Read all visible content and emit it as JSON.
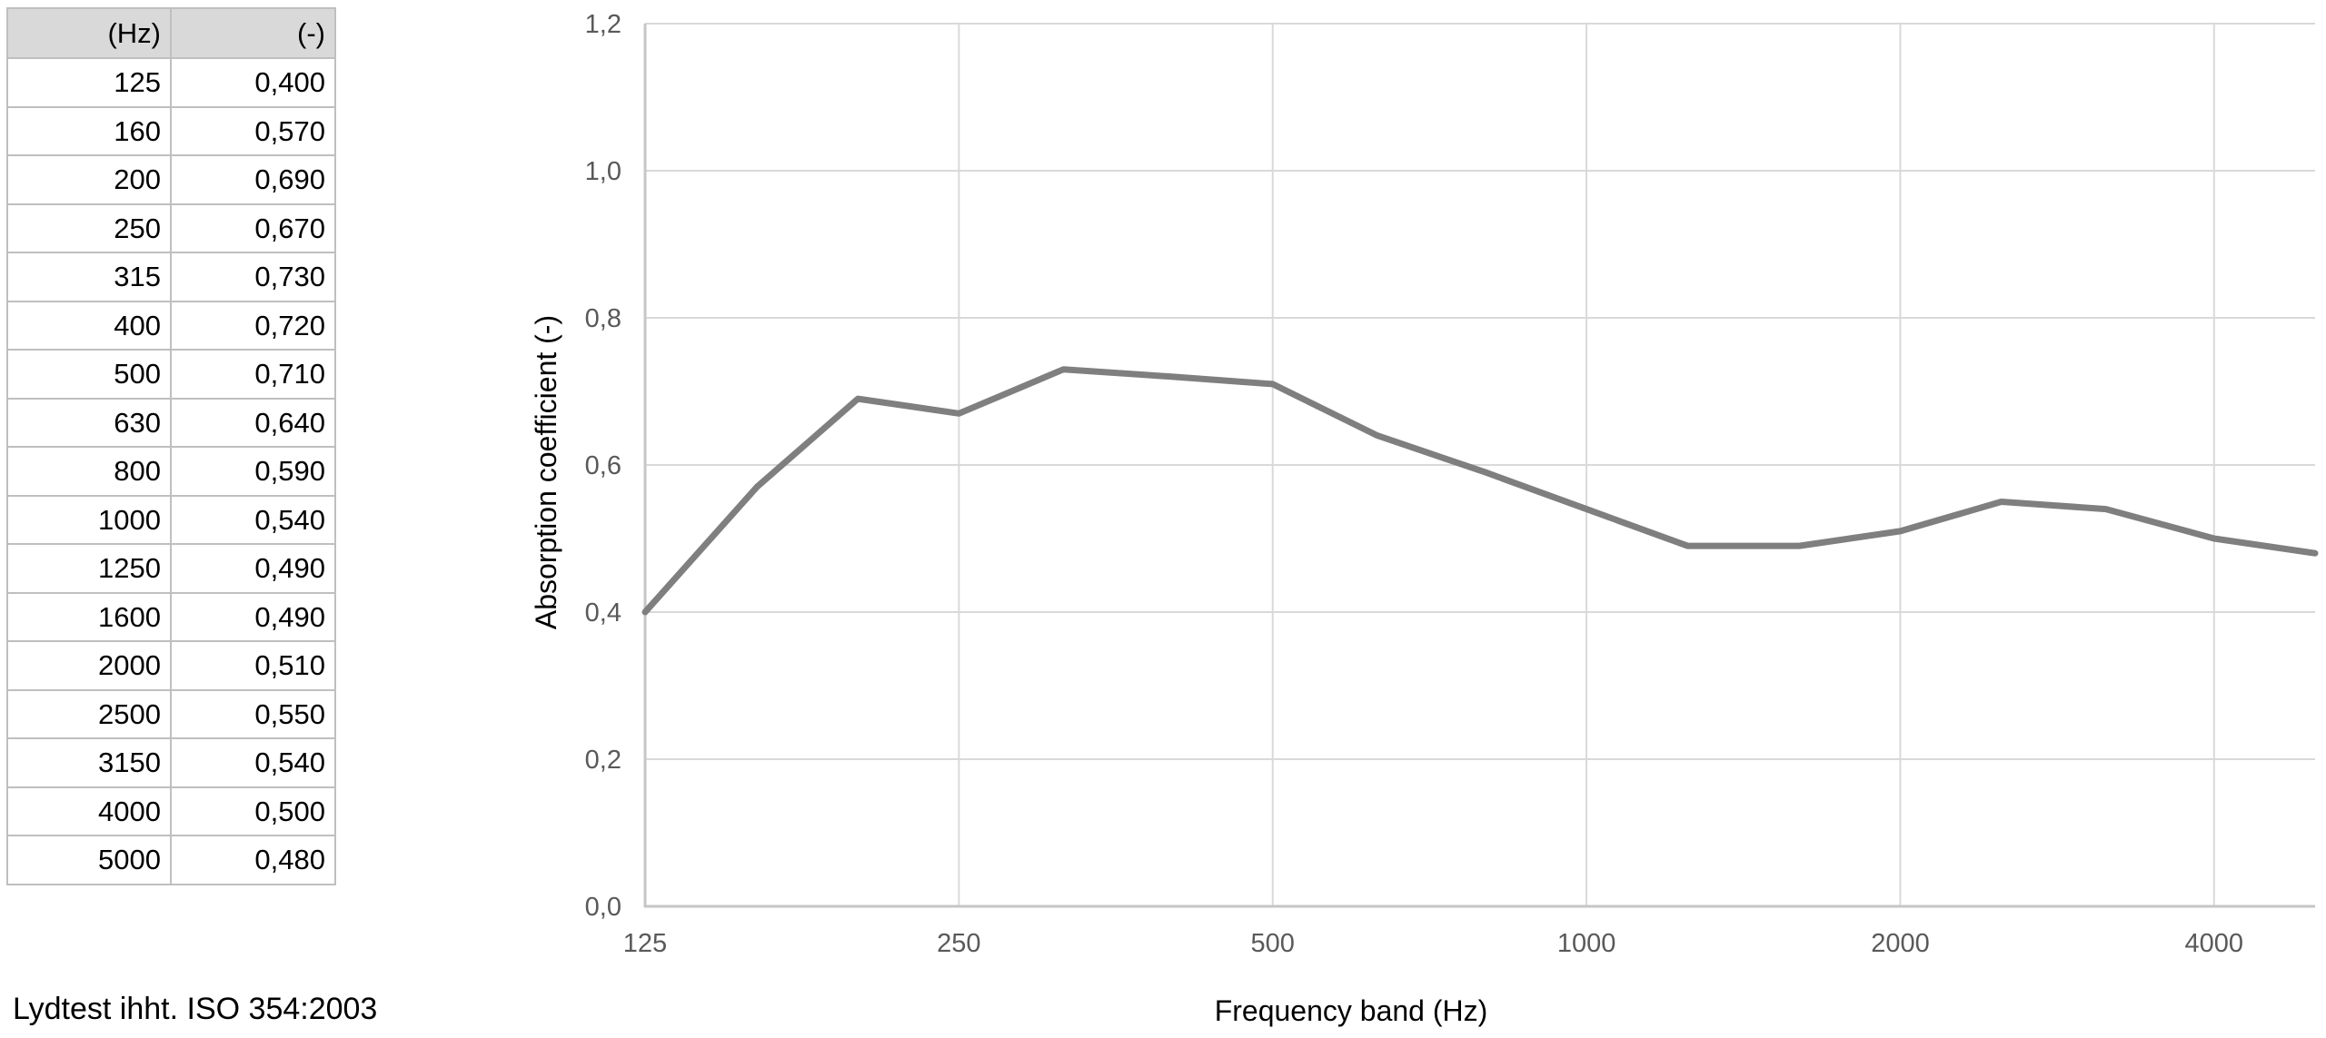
{
  "page": {
    "background": "#ffffff"
  },
  "table": {
    "headers": [
      "(Hz)",
      "(-)"
    ],
    "rows": [
      [
        "125",
        "0,400"
      ],
      [
        "160",
        "0,570"
      ],
      [
        "200",
        "0,690"
      ],
      [
        "250",
        "0,670"
      ],
      [
        "315",
        "0,730"
      ],
      [
        "400",
        "0,720"
      ],
      [
        "500",
        "0,710"
      ],
      [
        "630",
        "0,640"
      ],
      [
        "800",
        "0,590"
      ],
      [
        "1000",
        "0,540"
      ],
      [
        "1250",
        "0,490"
      ],
      [
        "1600",
        "0,490"
      ],
      [
        "2000",
        "0,510"
      ],
      [
        "2500",
        "0,550"
      ],
      [
        "3150",
        "0,540"
      ],
      [
        "4000",
        "0,500"
      ],
      [
        "5000",
        "0,480"
      ]
    ],
    "header_bg": "#d9d9d9",
    "border_color": "#bfbfbf"
  },
  "footnote": "Lydtest ihht. ISO 354:2003",
  "chart_data": {
    "type": "line",
    "title": "",
    "xlabel": "Frequency band (Hz)",
    "ylabel": "Absorption coefficient (-)",
    "x_scale": "log",
    "xlim": [
      125,
      5000
    ],
    "ylim": [
      0,
      1.2
    ],
    "grid": true,
    "legend_position": "none",
    "x": [
      125,
      160,
      200,
      250,
      315,
      400,
      500,
      630,
      800,
      1000,
      1250,
      1600,
      2000,
      2500,
      3150,
      4000,
      5000
    ],
    "series": [
      {
        "name": "Absorption coefficient",
        "values": [
          0.4,
          0.57,
          0.69,
          0.67,
          0.73,
          0.72,
          0.71,
          0.64,
          0.59,
          0.54,
          0.49,
          0.49,
          0.51,
          0.55,
          0.54,
          0.5,
          0.48
        ]
      }
    ],
    "x_ticks": [
      {
        "value": 125,
        "label": "125"
      },
      {
        "value": 250,
        "label": "250"
      },
      {
        "value": 500,
        "label": "500"
      },
      {
        "value": 1000,
        "label": "1000"
      },
      {
        "value": 2000,
        "label": "2000"
      },
      {
        "value": 4000,
        "label": "4000"
      }
    ],
    "y_ticks": [
      {
        "value": 0.0,
        "label": "0,0"
      },
      {
        "value": 0.2,
        "label": "0,2"
      },
      {
        "value": 0.4,
        "label": "0,4"
      },
      {
        "value": 0.6,
        "label": "0,6"
      },
      {
        "value": 0.8,
        "label": "0,8"
      },
      {
        "value": 1.0,
        "label": "1,0"
      },
      {
        "value": 1.2,
        "label": "1,2"
      }
    ],
    "colors": {
      "line": "#7f7f7f",
      "grid": "#d9d9d9",
      "axis": "#c6c6c6",
      "tick_text": "#595959",
      "title_text": "#000000"
    }
  }
}
